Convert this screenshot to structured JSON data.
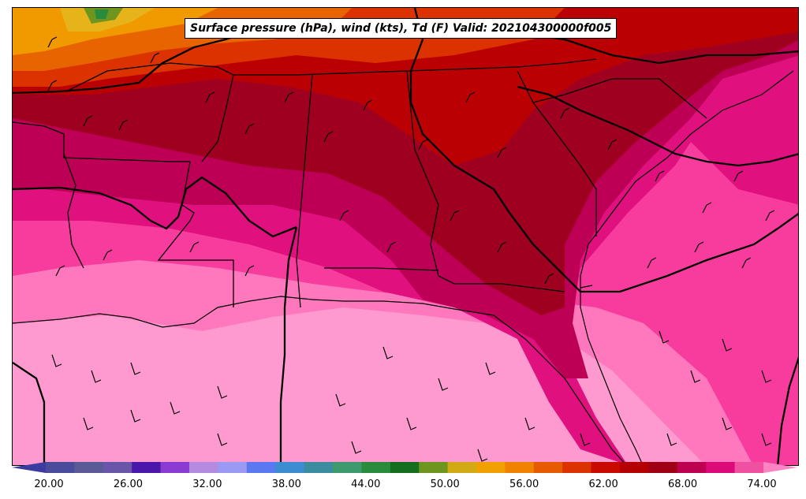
{
  "title": "Surface pressure (hPa), wind (kts), Td (F) Valid: 202104300000f005",
  "colorbar": {
    "tick_labels": [
      "20.00",
      "26.00",
      "32.00",
      "38.00",
      "44.00",
      "50.00",
      "56.00",
      "62.00",
      "68.00",
      "74.00"
    ],
    "colors": [
      "#3c3ca0",
      "#4b4b9b",
      "#5a5a96",
      "#6a56a8",
      "#4b16aa",
      "#8a3cd2",
      "#b48be0",
      "#9a9af5",
      "#5a78f0",
      "#3c8cd2",
      "#3c8ca0",
      "#3c9a6e",
      "#288c3c",
      "#146e1e",
      "#6e961e",
      "#d2aa14",
      "#f0a000",
      "#f08200",
      "#e65a00",
      "#dc3200",
      "#c80a00",
      "#b40000",
      "#a00014",
      "#be0050",
      "#dc0a78",
      "#f050a0",
      "#ff82c3"
    ],
    "extend": "both"
  },
  "colors": {
    "gulf_light": "#ff9ad0",
    "gulf": "#ff78be",
    "coastal": "#f73c9e",
    "mid": "#e0107e",
    "deep": "#bd0055",
    "darkred": "#9f0020",
    "red": "#bb0004",
    "orange": "#e86400",
    "amber": "#f09a00",
    "gold": "#e6b41a",
    "green": "#3c9a3c"
  }
}
